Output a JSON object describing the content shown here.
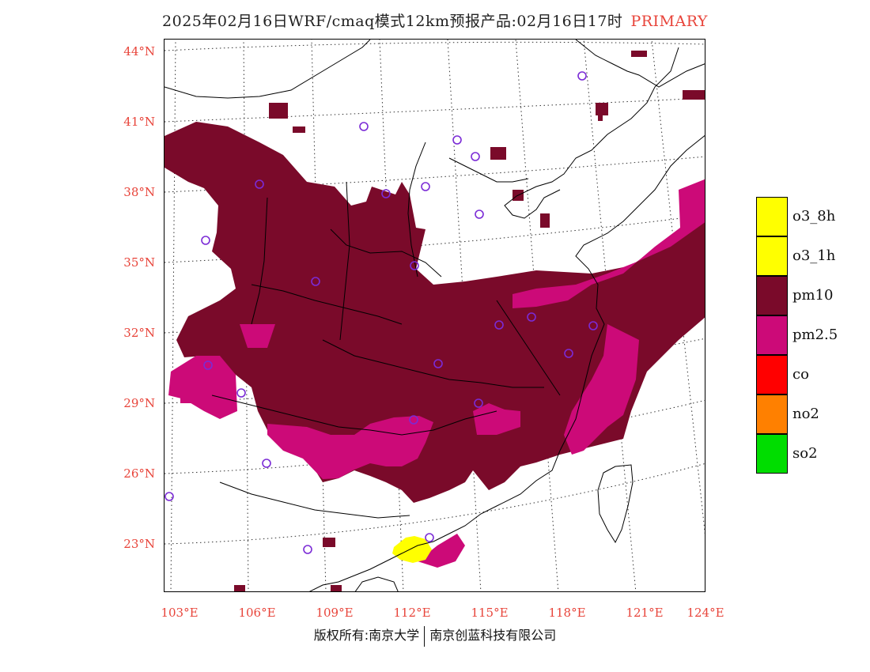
{
  "header": {
    "title": "2025年02月16日WRF/cmaq模式12km预报产品:02月16日17时",
    "tag": "PRIMARY"
  },
  "axes": {
    "lat_labels": [
      "44°N",
      "41°N",
      "38°N",
      "35°N",
      "32°N",
      "29°N",
      "26°N",
      "23°N"
    ],
    "lon_labels": [
      "103°E",
      "106°E",
      "109°E",
      "112°E",
      "115°E",
      "118°E",
      "121°E",
      "124°E"
    ]
  },
  "legend": {
    "items": [
      {
        "label": "o3_8h",
        "color": "#ffff00"
      },
      {
        "label": "o3_1h",
        "color": "#ffff00"
      },
      {
        "label": "pm10",
        "color": "#7a0a2a"
      },
      {
        "label": "pm2.5",
        "color": "#cc0a78"
      },
      {
        "label": "co",
        "color": "#ff0000"
      },
      {
        "label": "no2",
        "color": "#ff8000"
      },
      {
        "label": "so2",
        "color": "#00dd00"
      }
    ]
  },
  "map": {
    "colors": {
      "pm10": "#7a0a2a",
      "pm25": "#cc0a78",
      "o3": "#ffff00",
      "station": "#7b2bd6"
    }
  },
  "footer": {
    "left": "版权所有:南京大学",
    "right": "南京创蓝科技有限公司"
  }
}
